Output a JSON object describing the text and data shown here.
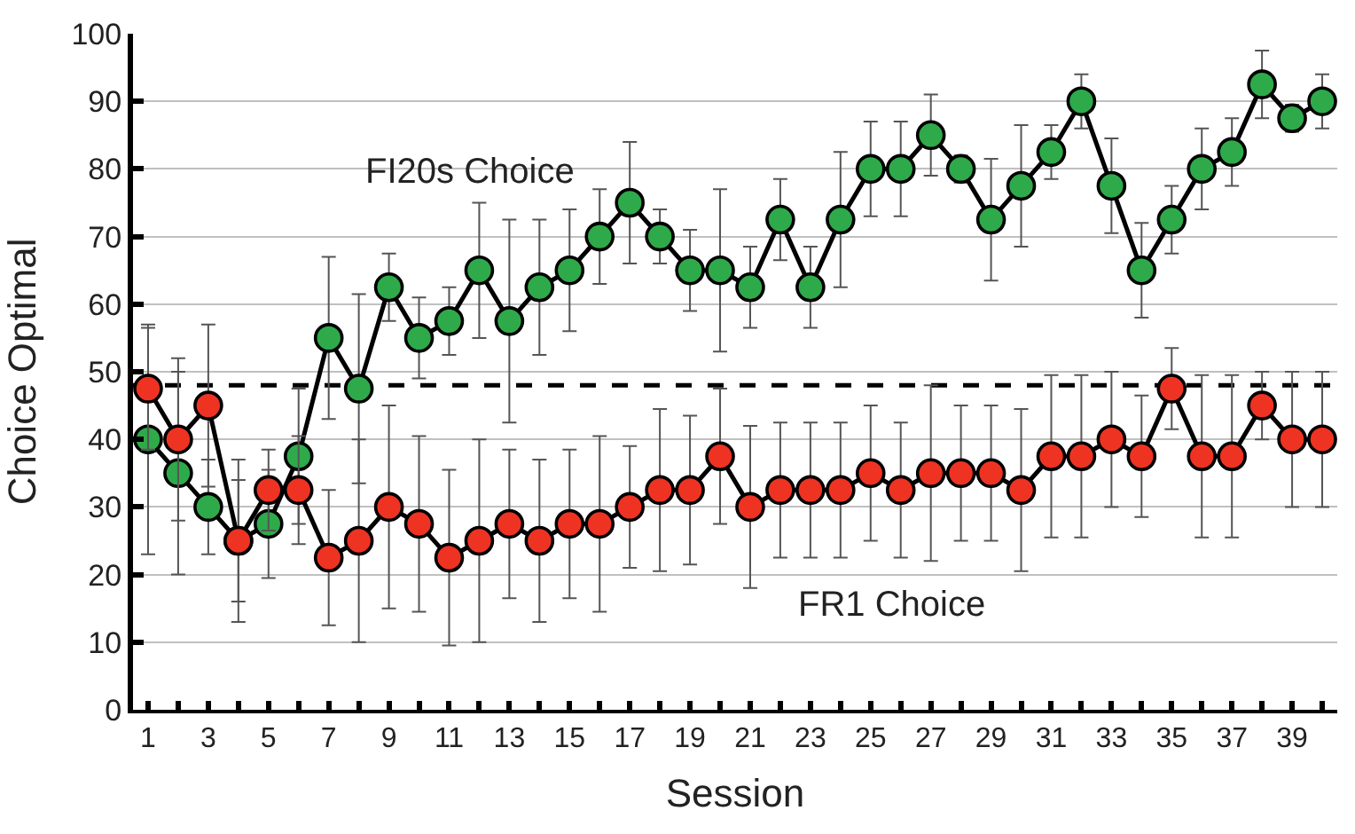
{
  "chart_data": {
    "type": "line",
    "xlabel": "Session",
    "ylabel": "Choice Optimal",
    "x": [
      1,
      2,
      3,
      4,
      5,
      6,
      7,
      8,
      9,
      10,
      11,
      12,
      13,
      14,
      15,
      16,
      17,
      18,
      19,
      20,
      21,
      22,
      23,
      24,
      25,
      26,
      27,
      28,
      29,
      30,
      31,
      32,
      33,
      34,
      35,
      36,
      37,
      38,
      39,
      40
    ],
    "series": [
      {
        "color": "#2eaa4a",
        "values": [
          40,
          35,
          30,
          25,
          27.5,
          37.5,
          55,
          47.5,
          62.5,
          55,
          57.5,
          65,
          57.5,
          62.5,
          65,
          70,
          75,
          70,
          65,
          65,
          62.5,
          72.5,
          62.5,
          72.5,
          80,
          80,
          85,
          80,
          72.5,
          77.5,
          82.5,
          90,
          77.5,
          65,
          72.5,
          80,
          82.5,
          92.5,
          87.5,
          90
        ],
        "errors": [
          17,
          15,
          7,
          9,
          8,
          10,
          12,
          14,
          5,
          6,
          5,
          10,
          15,
          10,
          9,
          7,
          9,
          4,
          6,
          12,
          6,
          6,
          6,
          10,
          7,
          7,
          6,
          2,
          9,
          9,
          4,
          4,
          7,
          7,
          5,
          6,
          5,
          5,
          2,
          4
        ]
      },
      {
        "color": "#ee3323",
        "values": [
          47.5,
          40,
          45,
          25,
          32.5,
          32.5,
          22.5,
          25,
          30,
          27.5,
          22.5,
          25,
          27.5,
          25,
          27.5,
          27.5,
          30,
          32.5,
          32.5,
          37.5,
          30,
          32.5,
          32.5,
          32.5,
          35,
          32.5,
          35,
          35,
          35,
          32.5,
          37.5,
          37.5,
          40,
          37.5,
          47.5,
          37.5,
          37.5,
          45,
          40,
          40
        ],
        "errors": [
          9,
          12,
          12,
          12,
          6,
          8,
          10,
          15,
          15,
          13,
          13,
          15,
          11,
          12,
          11,
          13,
          9,
          12,
          11,
          10,
          12,
          10,
          10,
          10,
          10,
          10,
          13,
          10,
          10,
          12,
          12,
          12,
          10,
          9,
          6,
          12,
          12,
          5,
          10,
          10
        ]
      }
    ],
    "annotations": [
      "FI20s Choice",
      "FR1 Choice"
    ],
    "ref_lines": [
      {
        "axis": "y",
        "value": 48,
        "color": "#000000",
        "line_style": "dashed"
      }
    ],
    "xlim": [
      0.5,
      40.5
    ],
    "xticks": [
      1,
      3,
      5,
      7,
      9,
      11,
      13,
      15,
      17,
      19,
      21,
      23,
      25,
      27,
      29,
      31,
      33,
      35,
      37,
      39
    ],
    "ylim": [
      0,
      100
    ],
    "yticks": [
      0,
      10,
      20,
      30,
      40,
      50,
      60,
      70,
      80,
      90,
      100
    ],
    "grid": "y",
    "marker": "circle",
    "line_style": "solid"
  }
}
